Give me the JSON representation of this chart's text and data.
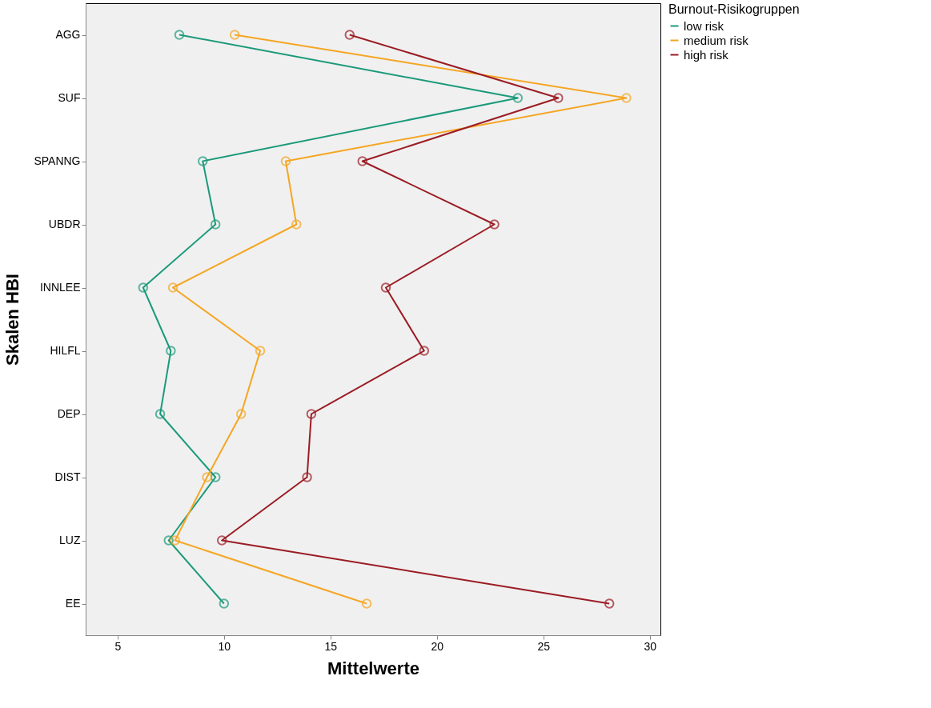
{
  "chart_data": {
    "type": "line",
    "orientation": "horizontal",
    "xlabel": "Mittelwerte",
    "ylabel": "Skalen HBI",
    "legend_title": "Burnout-Risikogruppen",
    "legend": "top right",
    "marker": "circle",
    "grid": false,
    "categories": [
      "AGG",
      "SUF",
      "SPANNG",
      "UBDR",
      "INNLEE",
      "HILFL",
      "DEP",
      "DIST",
      "LUZ",
      "EE"
    ],
    "xlim": [
      3.5,
      30.5
    ],
    "xticks": [
      5,
      10,
      15,
      20,
      25,
      30
    ],
    "series": [
      {
        "name": "low risk",
        "color": "#1b9a7a",
        "values": [
          7.9,
          23.8,
          9.0,
          9.6,
          6.2,
          7.5,
          7.0,
          9.6,
          7.4,
          10.0
        ]
      },
      {
        "name": "medium risk",
        "color": "#f5a623",
        "values": [
          10.5,
          28.9,
          12.9,
          13.4,
          7.6,
          11.7,
          10.8,
          9.2,
          7.7,
          16.7
        ]
      },
      {
        "name": "high risk",
        "color": "#9b1c24",
        "values": [
          15.9,
          25.7,
          16.5,
          22.7,
          17.6,
          19.4,
          14.1,
          13.9,
          9.9,
          28.1
        ]
      }
    ]
  }
}
